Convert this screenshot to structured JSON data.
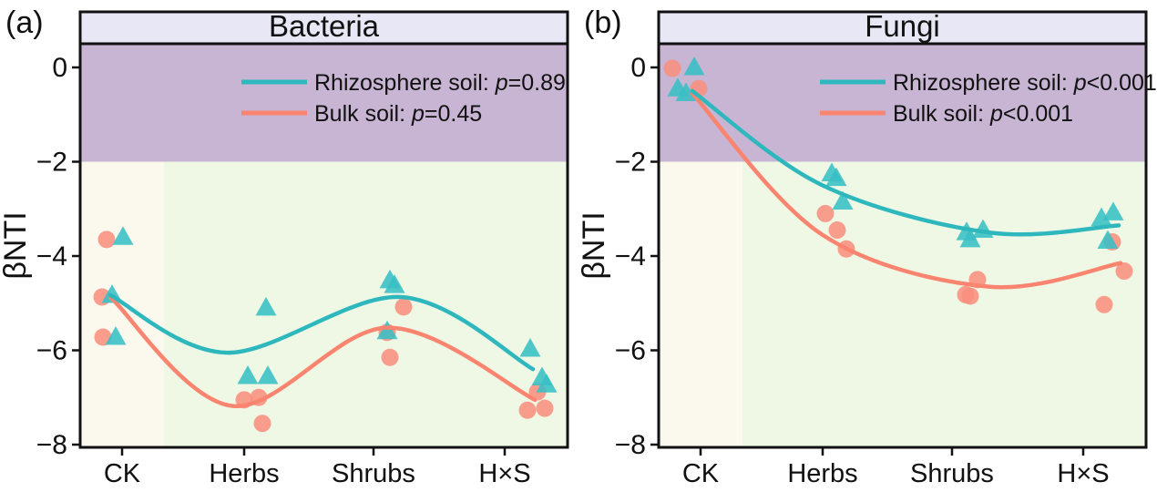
{
  "style": {
    "axis_color": "#111111",
    "title_strip_color": "#e8e7f5",
    "upper_region_color": "#c7b5d3",
    "ck_band_color": "#fbf8ee",
    "treatment_band_color": "#eff8e5",
    "rhizosphere_color": "#2eb8bd",
    "rhizosphere_marker_color": "#38bfc5",
    "bulk_color": "#f9846f",
    "bulk_marker_color": "#f98f7e"
  },
  "chart_data": [
    {
      "type": "scatter",
      "panel_label": "(a)",
      "title": "Bacteria",
      "ylabel": "βNTI",
      "xlabel": "",
      "categories": [
        "CK",
        "Herbs",
        "Shrubs",
        "H×S"
      ],
      "ylim": [
        -8.06,
        0.5
      ],
      "yticks": [
        0,
        -2,
        -4,
        -6,
        -8
      ],
      "ytick_labels": [
        "0",
        "−2",
        "−4",
        "−6",
        "−8"
      ],
      "threshold": -2,
      "grid": false,
      "legend_position": "top-right-inside",
      "legend": [
        {
          "label": "Rhizosphere soil: ",
          "p_text": "p=0.89",
          "color": "#2eb8bd"
        },
        {
          "label": "Bulk soil: ",
          "p_text": "p=0.45",
          "color": "#f9846f"
        }
      ],
      "series": [
        {
          "name": "Bulk soil",
          "marker": "circle",
          "color": "#f98f7e",
          "line_color": "#f9846f",
          "points": [
            {
              "category": "CK",
              "value": -3.65,
              "jitter": -17
            },
            {
              "category": "CK",
              "value": -4.87,
              "jitter": -22
            },
            {
              "category": "CK",
              "value": -5.72,
              "jitter": -21
            },
            {
              "category": "Herbs",
              "value": -7.05,
              "jitter": 0
            },
            {
              "category": "Herbs",
              "value": -7.0,
              "jitter": 16
            },
            {
              "category": "Herbs",
              "value": -7.55,
              "jitter": 20
            },
            {
              "category": "Shrubs",
              "value": -5.08,
              "jitter": 33
            },
            {
              "category": "Shrubs",
              "value": -5.62,
              "jitter": 15
            },
            {
              "category": "Shrubs",
              "value": -6.15,
              "jitter": 18
            },
            {
              "category": "H×S",
              "value": -6.88,
              "jitter": 36
            },
            {
              "category": "H×S",
              "value": -7.27,
              "jitter": 25
            },
            {
              "category": "H×S",
              "value": -7.23,
              "jitter": 44
            }
          ],
          "trend": [
            [
              0.062,
              -4.87
            ],
            [
              0.312,
              -7.18
            ],
            [
              0.63,
              -5.52
            ],
            [
              0.933,
              -7.05
            ]
          ]
        },
        {
          "name": "Rhizosphere soil",
          "marker": "triangle",
          "color": "#38bfc5",
          "line_color": "#2eb8bd",
          "points": [
            {
              "category": "CK",
              "value": -3.6,
              "jitter": 1
            },
            {
              "category": "CK",
              "value": -4.83,
              "jitter": -11
            },
            {
              "category": "CK",
              "value": -5.72,
              "jitter": -7
            },
            {
              "category": "Herbs",
              "value": -5.1,
              "jitter": 24
            },
            {
              "category": "Herbs",
              "value": -6.55,
              "jitter": 4
            },
            {
              "category": "Herbs",
              "value": -6.55,
              "jitter": 26
            },
            {
              "category": "Shrubs",
              "value": -4.52,
              "jitter": 18
            },
            {
              "category": "Shrubs",
              "value": -4.62,
              "jitter": 23
            },
            {
              "category": "Shrubs",
              "value": -5.6,
              "jitter": 15
            },
            {
              "category": "H×S",
              "value": -5.97,
              "jitter": 28
            },
            {
              "category": "H×S",
              "value": -6.58,
              "jitter": 41
            },
            {
              "category": "H×S",
              "value": -6.73,
              "jitter": 46
            }
          ],
          "trend": [
            [
              0.062,
              -4.83
            ],
            [
              0.303,
              -6.05
            ],
            [
              0.658,
              -4.87
            ],
            [
              0.929,
              -6.4
            ]
          ]
        }
      ]
    },
    {
      "type": "scatter",
      "panel_label": "(b)",
      "title": "Fungi",
      "ylabel": "βNTI",
      "xlabel": "",
      "categories": [
        "CK",
        "Herbs",
        "Shrubs",
        "H×S"
      ],
      "ylim": [
        -8.06,
        0.5
      ],
      "yticks": [
        0,
        -2,
        -4,
        -6,
        -8
      ],
      "ytick_labels": [
        "0",
        "−2",
        "−4",
        "−6",
        "−8"
      ],
      "threshold": -2,
      "grid": false,
      "legend_position": "top-right-inside",
      "legend": [
        {
          "label": "Rhizosphere soil: ",
          "p_text": "p<0.001",
          "color": "#2eb8bd"
        },
        {
          "label": "Bulk soil: ",
          "p_text": "p<0.001",
          "color": "#f9846f"
        }
      ],
      "series": [
        {
          "name": "Bulk soil",
          "marker": "circle",
          "color": "#f98f7e",
          "line_color": "#f9846f",
          "points": [
            {
              "category": "CK",
              "value": -0.02,
              "jitter": -31
            },
            {
              "category": "CK",
              "value": -0.45,
              "jitter": -2
            },
            {
              "category": "Herbs",
              "value": -3.1,
              "jitter": 3
            },
            {
              "category": "Herbs",
              "value": -3.45,
              "jitter": 16
            },
            {
              "category": "Herbs",
              "value": -3.85,
              "jitter": 26
            },
            {
              "category": "Shrubs",
              "value": -4.5,
              "jitter": 28
            },
            {
              "category": "Shrubs",
              "value": -4.82,
              "jitter": 15
            },
            {
              "category": "Shrubs",
              "value": -4.85,
              "jitter": 20
            },
            {
              "category": "H×S",
              "value": -3.7,
              "jitter": 32
            },
            {
              "category": "H×S",
              "value": -4.32,
              "jitter": 45
            },
            {
              "category": "H×S",
              "value": -5.03,
              "jitter": 23
            }
          ],
          "trend": [
            [
              0.069,
              -0.55
            ],
            [
              0.336,
              -3.55
            ],
            [
              0.677,
              -4.65
            ],
            [
              0.948,
              -4.15
            ]
          ]
        },
        {
          "name": "Rhizosphere soil",
          "marker": "triangle",
          "color": "#38bfc5",
          "line_color": "#2eb8bd",
          "points": [
            {
              "category": "CK",
              "value": 0.0,
              "jitter": -7
            },
            {
              "category": "CK",
              "value": -0.45,
              "jitter": -25
            },
            {
              "category": "CK",
              "value": -0.55,
              "jitter": -16
            },
            {
              "category": "Herbs",
              "value": -2.25,
              "jitter": 10
            },
            {
              "category": "Herbs",
              "value": -2.35,
              "jitter": 15
            },
            {
              "category": "Herbs",
              "value": -2.85,
              "jitter": 22
            },
            {
              "category": "Shrubs",
              "value": -3.45,
              "jitter": 34
            },
            {
              "category": "Shrubs",
              "value": -3.5,
              "jitter": 16
            },
            {
              "category": "Shrubs",
              "value": -3.65,
              "jitter": 20
            },
            {
              "category": "H×S",
              "value": -3.08,
              "jitter": 33
            },
            {
              "category": "H×S",
              "value": -3.2,
              "jitter": 20
            },
            {
              "category": "H×S",
              "value": -3.68,
              "jitter": 27
            }
          ],
          "trend": [
            [
              0.069,
              -0.5
            ],
            [
              0.336,
              -2.5
            ],
            [
              0.677,
              -3.5
            ],
            [
              0.944,
              -3.35
            ]
          ]
        }
      ]
    }
  ]
}
